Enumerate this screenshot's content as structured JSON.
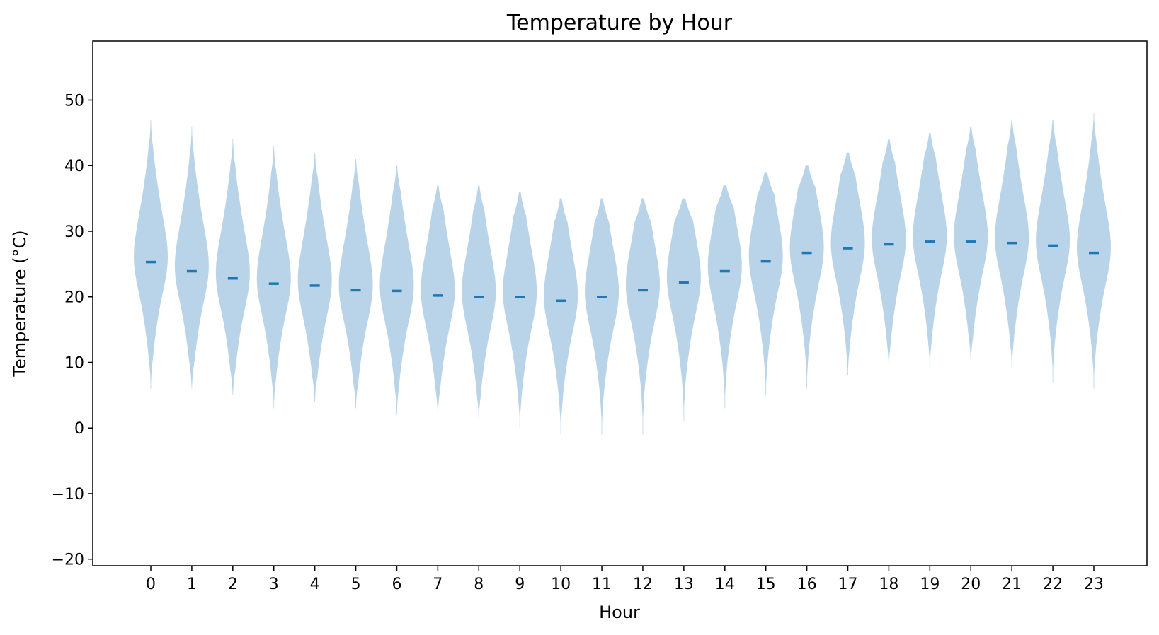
{
  "chart_data": {
    "type": "violin",
    "title": "Temperature by Hour",
    "xlabel": "Hour",
    "ylabel": "Temperature (°C)",
    "ylim": [
      -21,
      59
    ],
    "yticks": [
      -20,
      -10,
      0,
      10,
      20,
      30,
      40,
      50
    ],
    "ytick_labels": [
      "−20",
      "−10",
      "0",
      "10",
      "20",
      "30",
      "40",
      "50"
    ],
    "categories": [
      "0",
      "1",
      "2",
      "3",
      "4",
      "5",
      "6",
      "7",
      "8",
      "9",
      "10",
      "11",
      "12",
      "13",
      "14",
      "15",
      "16",
      "17",
      "18",
      "19",
      "20",
      "21",
      "22",
      "23"
    ],
    "medians": [
      25.3,
      23.9,
      22.8,
      22.0,
      21.7,
      21.0,
      20.9,
      20.2,
      20.0,
      20.0,
      19.4,
      20.0,
      21.0,
      22.2,
      23.9,
      25.4,
      26.7,
      27.4,
      28.0,
      28.4,
      28.4,
      28.2,
      27.8,
      26.7
    ],
    "mins": [
      6,
      6,
      5,
      3,
      4,
      3,
      2,
      2,
      1,
      0,
      -1,
      -1,
      -1,
      1,
      3,
      5,
      6,
      8,
      9,
      9,
      10,
      9,
      7,
      6
    ],
    "maxs": [
      47,
      46,
      44,
      43,
      42,
      41,
      40,
      37,
      37,
      36,
      35,
      35,
      35,
      35,
      37,
      39,
      40,
      42,
      44,
      45,
      46,
      47,
      47,
      48
    ],
    "colors": {
      "body": "#b9d4e8",
      "median": "#1f77b4"
    },
    "grid": false,
    "legend": "none"
  }
}
